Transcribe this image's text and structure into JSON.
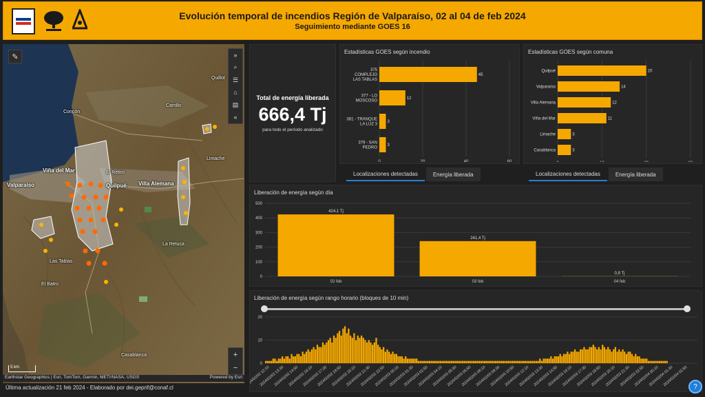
{
  "header": {
    "title": "Evolución temporal de incendios Región de Valparaíso, 02 al 04 de feb 2024",
    "subtitle": "Seguimiento mediante GOES 16"
  },
  "map": {
    "labels": {
      "vina": "Viña del Mar",
      "valparaiso": "Valparaíso",
      "quilpue": "Quilpué",
      "villa_alemana": "Villa Alemana",
      "el_retiro": "El Retiro",
      "las_tablas": "Las Tablas",
      "el_batro": "El Batro",
      "la_retuca": "La Retuca",
      "concon": "Concón",
      "carrillo": "Carrillo",
      "limache": "Limache",
      "quillota": "Quillot",
      "casablanca": "Casablanca"
    },
    "scale": "5 km",
    "attribution": "Earthstar Geographics | Esri, TomTom, Garmin, METI/NASA, USGS",
    "powered": "Powered by Esri",
    "footer": "Última actualización 21 feb 2024 - Elaborado por dei.geprif@conaf.cl"
  },
  "kpi": {
    "label": "Total de energía liberada",
    "value": "666,4 Tj",
    "sub": "para todo el período analizado"
  },
  "tabs": {
    "det": "Localizaciones detectadas",
    "energy": "Energía liberada"
  },
  "colors": {
    "accent": "#f5a800",
    "tab_active": "#2a7fd4"
  },
  "chart_data": [
    {
      "type": "bar",
      "orientation": "horizontal",
      "title": "Estadísticas GOES según incendio",
      "categories": [
        "375 COMPLEJO LAS TABLAS",
        "377 - LO MOSCOSO",
        "381 - TRANQUE LA LUZ 3",
        "379 - SAN PEDRO"
      ],
      "category_lines": [
        [
          "375",
          "COMPLEJO",
          "LAS TABLAS"
        ],
        [
          "377 - LO",
          "MOSCOSO"
        ],
        [
          "381 - TRANQUE",
          "LA LUZ 3"
        ],
        [
          "379 - SAN",
          "PEDRO"
        ]
      ],
      "values": [
        45,
        12,
        3,
        3
      ],
      "xlim": [
        0,
        60
      ],
      "xticks": [
        0,
        20,
        40,
        60
      ]
    },
    {
      "type": "bar",
      "orientation": "horizontal",
      "title": "Estadísticas GOES según comuna",
      "categories": [
        "Quilpué",
        "Valparaíso",
        "Villa Alemana",
        "Viña del Mar",
        "Limache",
        "Casablanca"
      ],
      "values": [
        20,
        14,
        12,
        11,
        3,
        3
      ],
      "xlim": [
        0,
        30
      ],
      "xticks": [
        0,
        10,
        20,
        30
      ]
    },
    {
      "type": "bar",
      "title": "Liberación de energía según día",
      "categories": [
        "02 feb",
        "03 feb",
        "04 feb"
      ],
      "values": [
        424.1,
        241.4,
        0.9
      ],
      "data_labels": [
        "424,1 Tj",
        "241,4 Tj",
        "0,9 Tj"
      ],
      "ylim": [
        0,
        500
      ],
      "yticks": [
        0,
        100,
        200,
        300,
        400,
        500
      ]
    },
    {
      "type": "bar",
      "title": "Liberación de energía según rango horario (bloques de 10 min)",
      "ylim": [
        0,
        20
      ],
      "yticks": [
        0,
        10,
        20
      ],
      "x_tick_labels": [
        "2024/02/02 12:10",
        "2024/02/02 13:30",
        "2024/02/02 14:50",
        "2024/02/02 16:10",
        "2024/02/02 17:30",
        "2024/02/02 18:50",
        "2024/02/02 20:10",
        "2024/02/02 21:30",
        "2024/02/02 22:50",
        "2024/02/03 00:10",
        "2024/02/03 01:30",
        "2024/02/03 02:50",
        "2024/02/03 04:10",
        "2024/02/03 05:30",
        "2024/02/03 06:50",
        "2024/02/03 08:10",
        "2024/02/03 09:30",
        "2024/02/03 10:50",
        "2024/02/03 12:10",
        "2024/02/03 13:30",
        "2024/02/03 14:50",
        "2024/02/03 16:10",
        "2024/02/03 17:30",
        "2024/02/03 18:50",
        "2024/02/03 20:10",
        "2024/02/03 21:30",
        "2024/02/03 22:50",
        "2024/02/04 00:10",
        "2024/02/04 01:30",
        "2024/02/04 02:50"
      ],
      "values": [
        1,
        1,
        1,
        1,
        2,
        2,
        1,
        2,
        2,
        3,
        2,
        3,
        3,
        2,
        4,
        3,
        3,
        4,
        4,
        3,
        5,
        4,
        5,
        6,
        5,
        6,
        7,
        6,
        8,
        7,
        7,
        9,
        8,
        9,
        10,
        11,
        9,
        12,
        11,
        13,
        14,
        12,
        15,
        16,
        13,
        15,
        12,
        11,
        13,
        10,
        12,
        11,
        12,
        11,
        10,
        9,
        10,
        9,
        8,
        9,
        11,
        8,
        7,
        6,
        7,
        5,
        6,
        5,
        4,
        5,
        4,
        4,
        3,
        3,
        3,
        2,
        3,
        2,
        2,
        2,
        2,
        2,
        2,
        1,
        1,
        1,
        1,
        1,
        1,
        1,
        1,
        1,
        1,
        1,
        1,
        1,
        1,
        1,
        1,
        1,
        1,
        1,
        1,
        1,
        1,
        1,
        1,
        1,
        1,
        1,
        1,
        1,
        1,
        1,
        1,
        1,
        1,
        1,
        1,
        1,
        1,
        1,
        1,
        1,
        1,
        1,
        1,
        1,
        1,
        1,
        1,
        1,
        1,
        1,
        1,
        1,
        1,
        1,
        1,
        1,
        1,
        1,
        1,
        1,
        1,
        1,
        1,
        1,
        1,
        2,
        1,
        2,
        2,
        2,
        2,
        3,
        2,
        3,
        3,
        3,
        4,
        3,
        4,
        4,
        5,
        4,
        5,
        5,
        6,
        5,
        5,
        6,
        6,
        7,
        6,
        6,
        7,
        7,
        8,
        7,
        6,
        7,
        6,
        8,
        7,
        6,
        7,
        6,
        5,
        6,
        7,
        5,
        6,
        5,
        6,
        5,
        4,
        5,
        5,
        4,
        3,
        4,
        3,
        3,
        2,
        2,
        2,
        2,
        1,
        1,
        1,
        1,
        1,
        1,
        1,
        1,
        1,
        1,
        1,
        0,
        0,
        0,
        0,
        0,
        0,
        0,
        0,
        0,
        0,
        0,
        0,
        0,
        0,
        0,
        0
      ]
    }
  ]
}
